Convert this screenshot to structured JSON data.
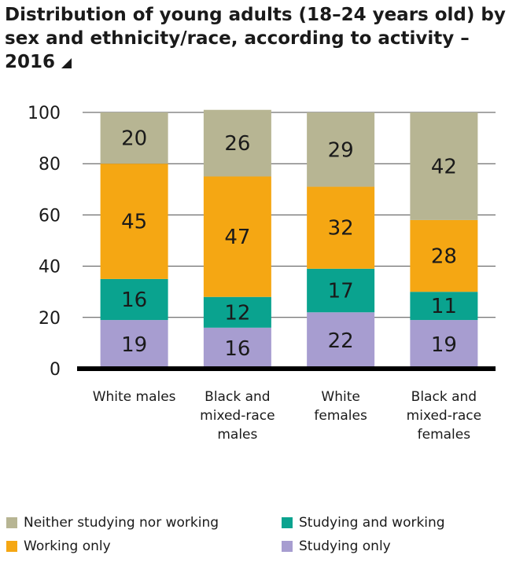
{
  "title": "Distribution of young adults (18–24 years old) by sex and ethnicity/race, according to activity – 2016",
  "colors": {
    "neither": "#b7b593",
    "working": "#f5a713",
    "studying_working": "#0aa38f",
    "studying": "#a79dd0",
    "axis": "#000000",
    "grid": "#4d4d4d"
  },
  "chart_data": {
    "type": "bar",
    "stacked": true,
    "categories": [
      "White males",
      "Black and mixed-race males",
      "White females",
      "Black and mixed-race females"
    ],
    "category_lines": [
      [
        "White males"
      ],
      [
        "Black and",
        "mixed-race",
        "males"
      ],
      [
        "White",
        "females"
      ],
      [
        "Black and",
        "mixed-race",
        "females"
      ]
    ],
    "series": [
      {
        "name": "Studying only",
        "color": "#a79dd0",
        "values": [
          19,
          16,
          22,
          19
        ]
      },
      {
        "name": "Studying and working",
        "color": "#0aa38f",
        "values": [
          16,
          12,
          17,
          11
        ]
      },
      {
        "name": "Working only",
        "color": "#f5a713",
        "values": [
          45,
          47,
          32,
          28
        ]
      },
      {
        "name": "Neither studying nor working",
        "color": "#b7b593",
        "values": [
          20,
          26,
          29,
          42
        ]
      }
    ],
    "yticks": [
      0,
      20,
      40,
      60,
      80,
      100
    ],
    "ylim": [
      0,
      100
    ],
    "grid": true,
    "legend_position": "bottom"
  },
  "legend": [
    {
      "label": "Neither studying nor working",
      "color": "#b7b593"
    },
    {
      "label": "Studying and working",
      "color": "#0aa38f"
    },
    {
      "label": "Working only",
      "color": "#f5a713"
    },
    {
      "label": "Studying only",
      "color": "#a79dd0"
    }
  ]
}
